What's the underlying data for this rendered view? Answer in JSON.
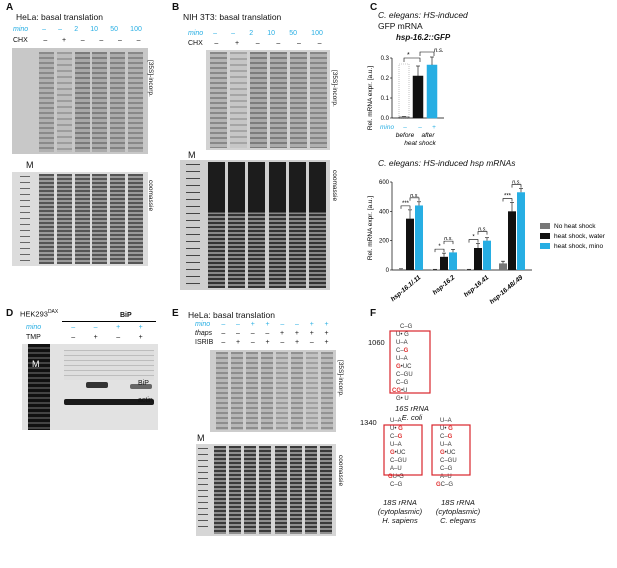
{
  "panelA": {
    "letter": "A",
    "title": "HeLa: basal translation",
    "row_mino_label": "mino",
    "row_chx_label": "CHX",
    "mino_values": [
      "–",
      "–",
      "2",
      "10",
      "50",
      "100"
    ],
    "chx_values": [
      "–",
      "+",
      "–",
      "–",
      "–",
      "–"
    ],
    "radio_label": "[35S]-incorp.",
    "stain_label": "coomassie",
    "marker_label": "M"
  },
  "panelB": {
    "letter": "B",
    "title": "NIH 3T3: basal translation",
    "row_mino_label": "mino",
    "row_chx_label": "CHX",
    "mino_values": [
      "–",
      "–",
      "2",
      "10",
      "50",
      "100"
    ],
    "chx_values": [
      "–",
      "+",
      "–",
      "–",
      "–",
      "–"
    ],
    "radio_label": "[35S]-incorp.",
    "stain_label": "coomassie",
    "marker_label": "M"
  },
  "panelC": {
    "letter": "C",
    "title_line1": "C. elegans: HS-induced",
    "title_line2": "GFP mRNA",
    "gene_label": "hsp-16.2::GFP",
    "sig1": "*",
    "sig2": "n.s.",
    "row_mino": "mino",
    "mino_vals": [
      "–",
      "–",
      "+"
    ],
    "before": "before",
    "after": "after",
    "heat_shock": "heat shock",
    "chart2_title": "C. elegans: HS-induced hsp mRNAs",
    "legend": [
      "No heat shock",
      "heat shock, water",
      "heat shock, mino"
    ],
    "sig_labels": [
      "***",
      "n.s.",
      "*",
      "n.s.",
      "*",
      "n.s.",
      "***",
      "n.s."
    ]
  },
  "panelD": {
    "letter": "D",
    "cell_line": "HEK293",
    "cell_sup": "DAX",
    "bip_header": "BiP",
    "row_mino_label": "mino",
    "row_tmp_label": "TMP",
    "mino_values": [
      "–",
      "–",
      "+",
      "+"
    ],
    "tmp_values": [
      "–",
      "+",
      "–",
      "+"
    ],
    "band1": "BiP",
    "band2": "actin",
    "marker_label": "M"
  },
  "panelE": {
    "letter": "E",
    "title": "HeLa: basal translation",
    "row_mino_label": "mino",
    "row_thaps_label": "thaps",
    "row_isrib_label": "ISRIB",
    "mino_values": [
      "–",
      "–",
      "+",
      "+",
      "–",
      "–",
      "+",
      "+"
    ],
    "thaps_values": [
      "–",
      "–",
      "–",
      "–",
      "+",
      "+",
      "+",
      "+"
    ],
    "isrib_values": [
      "–",
      "+",
      "–",
      "+",
      "–",
      "+",
      "–",
      "+"
    ],
    "radio_label": "[35S]-incorp.",
    "stain_label": "coomassie",
    "marker_label": "M"
  },
  "panelF": {
    "letter": "F",
    "num1": "1060",
    "num2": "1340",
    "rna1_l1": "16S rRNA",
    "rna1_l2": "E. coli",
    "rna2_l1": "18S rRNA",
    "rna2_l2": "(cytoplasmic)",
    "rna2_l3": "H. sapiens",
    "rna3_l1": "18S rRNA",
    "rna3_l2": "(cytoplasmic)",
    "rna3_l3": "C. elegans"
  },
  "chart_data": [
    {
      "type": "bar",
      "title": "hsp-16.2::GFP",
      "ylabel": "Rel. mRNA expr. [a.u.]",
      "ylim": [
        0,
        0.3
      ],
      "yticks": [
        "0.0",
        "0.1",
        "0.2",
        "0.3"
      ],
      "categories": [
        "before heat shock",
        "after heat shock, water",
        "after heat shock, mino"
      ],
      "values": [
        0.005,
        0.21,
        0.265
      ],
      "errors": [
        0.002,
        0.05,
        0.04
      ],
      "colors": [
        "#ffffff",
        "#111111",
        "#27aee3"
      ]
    },
    {
      "type": "bar",
      "title": "C. elegans: HS-induced hsp mRNAs",
      "ylabel": "Rel. mRNA expr. [a.u.]",
      "ylim": [
        0,
        600
      ],
      "yticks": [
        "0",
        "200",
        "400",
        "600"
      ],
      "categories": [
        "hsp-16.1/.11",
        "hsp-16.2",
        "hsp-16.41",
        "hsp-16.48/.49"
      ],
      "series": [
        {
          "name": "No heat shock",
          "values": [
            5,
            3,
            3,
            45
          ],
          "errors": [
            3,
            2,
            2,
            15
          ],
          "color": "#777777"
        },
        {
          "name": "heat shock, water",
          "values": [
            350,
            90,
            150,
            400
          ],
          "errors": [
            60,
            25,
            30,
            60
          ],
          "color": "#111111"
        },
        {
          "name": "heat shock, mino",
          "values": [
            440,
            120,
            200,
            530
          ],
          "errors": [
            25,
            20,
            20,
            25
          ],
          "color": "#27aee3"
        }
      ]
    }
  ]
}
